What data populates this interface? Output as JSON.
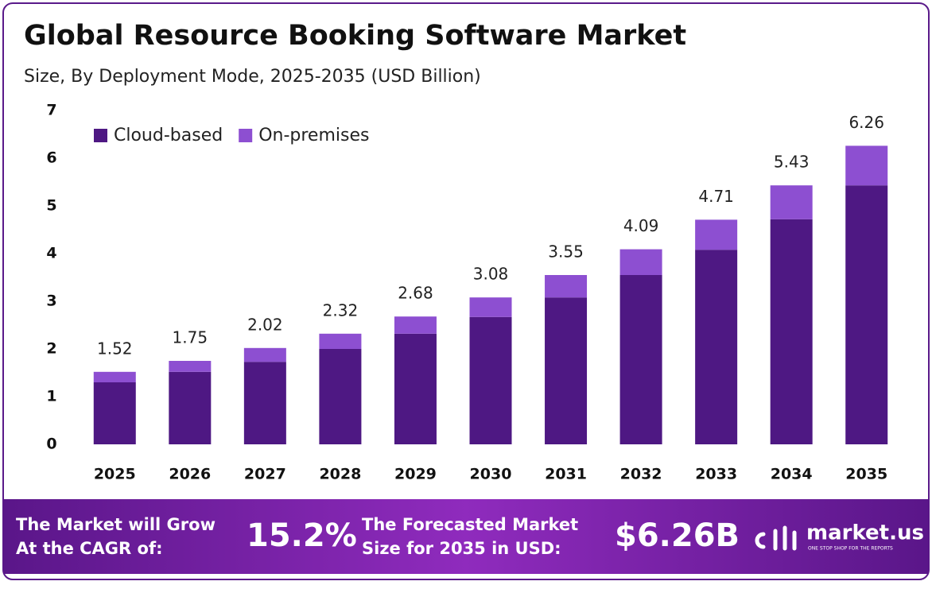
{
  "chart_data": {
    "type": "stacked_bar",
    "title": "Global Resource Booking Software Market",
    "subtitle": "Size, By Deployment Mode, 2025-2035 (USD Billion)",
    "categories": [
      "2025",
      "2026",
      "2027",
      "2028",
      "2029",
      "2030",
      "2031",
      "2032",
      "2033",
      "2034",
      "2035"
    ],
    "series": [
      {
        "name": "Cloud-based",
        "color": "#4e1883",
        "values": [
          1.3,
          1.52,
          1.73,
          2.0,
          2.32,
          2.67,
          3.08,
          3.55,
          4.08,
          4.72,
          5.43
        ]
      },
      {
        "name": "On-premises",
        "color": "#8d4fd1",
        "values": [
          0.22,
          0.23,
          0.29,
          0.32,
          0.36,
          0.41,
          0.47,
          0.54,
          0.63,
          0.71,
          0.83
        ]
      }
    ],
    "totals": [
      1.52,
      1.75,
      2.02,
      2.32,
      2.68,
      3.08,
      3.55,
      4.09,
      4.71,
      5.43,
      6.26
    ],
    "ylim": [
      0,
      7
    ],
    "yticks": [
      0,
      1,
      2,
      3,
      4,
      5,
      6,
      7
    ],
    "grid": false,
    "legend": "upper left"
  },
  "footer": {
    "cagr_text": [
      "The Market will Grow",
      "At the CAGR of:"
    ],
    "cagr_value": "15.2%",
    "forecast_text": [
      "The Forecasted Market",
      "Size for 2035 in USD:"
    ],
    "forecast_value": "$6.26B",
    "brand": "market.us",
    "tagline": "ONE STOP SHOP FOR THE REPORTS"
  }
}
